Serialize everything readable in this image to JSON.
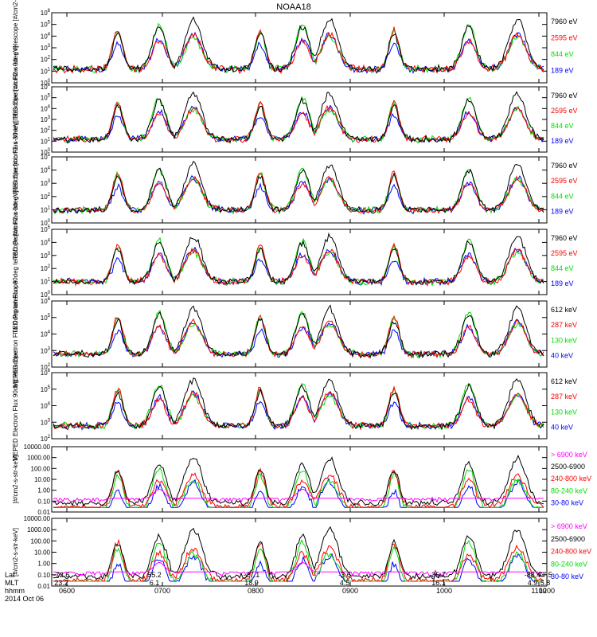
{
  "figure": {
    "title": "NOAA18",
    "date_label": "2014 Oct 06",
    "row_labels": [
      "Lat",
      "MLT",
      "hhmm"
    ],
    "time_axis": {
      "lat": [
        "-72.6",
        "55.2",
        "-27.1",
        "-3.6",
        "35.7",
        "-88.4",
        "77.5"
      ],
      "mlt": [
        "23.2",
        "6.1",
        "18.9",
        "4.5",
        "16.1",
        "4.9",
        "5.8"
      ],
      "hhmm": [
        "0600",
        "0700",
        "0800",
        "0900",
        "1000",
        "1100",
        "1200"
      ]
    }
  },
  "colors": {
    "black": "#000000",
    "red": "#ff0000",
    "green": "#00dd00",
    "blue": "#0000ff",
    "magenta": "#ff00ff"
  },
  "chart_data": [
    {
      "type": "line",
      "ylabel": "TED Electron Flux 0deg telescope [#/cm2-s-str-eV]",
      "yscale": "log",
      "ylim": [
        1,
        1000000
      ],
      "ytick_labels": [
        "10^0",
        "10^1",
        "10^2",
        "10^3",
        "10^4",
        "10^5",
        "10^6"
      ],
      "series": [
        {
          "name": "7960 eV",
          "color": "#000000"
        },
        {
          "name": "2595 eV",
          "color": "#ff0000"
        },
        {
          "name": "844 eV",
          "color": "#00dd00"
        },
        {
          "name": "189 eV",
          "color": "#0000ff"
        }
      ]
    },
    {
      "type": "line",
      "ylabel": "TED Electron Flux 30deg telescope [#/cm2-s-str-eV]",
      "yscale": "log",
      "ylim": [
        1,
        1000000
      ],
      "ytick_labels": [
        "10^0",
        "10^1",
        "10^2",
        "10^3",
        "10^4",
        "10^5",
        "10^6"
      ],
      "series": [
        {
          "name": "7960 eV",
          "color": "#000000"
        },
        {
          "name": "2595 eV",
          "color": "#ff0000"
        },
        {
          "name": "844 eV",
          "color": "#00dd00"
        },
        {
          "name": "189 eV",
          "color": "#0000ff"
        }
      ]
    },
    {
      "type": "line",
      "ylabel": "TED Proton Flux 0deg telescope [#/cm2-s-str-eV]",
      "yscale": "log",
      "ylim": [
        1,
        100000
      ],
      "ytick_labels": [
        "10^0",
        "10^1",
        "10^2",
        "10^3",
        "10^4",
        "10^5"
      ],
      "series": [
        {
          "name": "7960 eV",
          "color": "#000000"
        },
        {
          "name": "2595 eV",
          "color": "#ff0000"
        },
        {
          "name": "844 eV",
          "color": "#00dd00"
        },
        {
          "name": "189 eV",
          "color": "#0000ff"
        }
      ]
    },
    {
      "type": "line",
      "ylabel": "TED Proton Flux 30deg telescope [#/cm2-s-str-eV]",
      "yscale": "log",
      "ylim": [
        1,
        100000
      ],
      "ytick_labels": [
        "10^0",
        "10^1",
        "10^2",
        "10^3",
        "10^4",
        "10^5"
      ],
      "series": [
        {
          "name": "7960 eV",
          "color": "#000000"
        },
        {
          "name": "2595 eV",
          "color": "#ff0000"
        },
        {
          "name": "844 eV",
          "color": "#00dd00"
        },
        {
          "name": "189 eV",
          "color": "#0000ff"
        }
      ]
    },
    {
      "type": "line",
      "ylabel": "MEPED Electron Flux 0deg telescope",
      "yscale": "log",
      "ylim": [
        100,
        1000000
      ],
      "ytick_labels": [
        "10^2",
        "10^3",
        "10^4",
        "10^5",
        "10^6"
      ],
      "series": [
        {
          "name": "612 keV",
          "color": "#000000"
        },
        {
          "name": "287 keV",
          "color": "#ff0000"
        },
        {
          "name": "130 keV",
          "color": "#00dd00"
        },
        {
          "name": "40 keV",
          "color": "#0000ff"
        }
      ]
    },
    {
      "type": "line",
      "ylabel": "MEPED Electron Flux 90deg telescope",
      "yscale": "log",
      "ylim": [
        100,
        1000000
      ],
      "ytick_labels": [
        "10^2",
        "10^3",
        "10^4",
        "10^5",
        "10^6"
      ],
      "series": [
        {
          "name": "612 keV",
          "color": "#000000"
        },
        {
          "name": "287 keV",
          "color": "#ff0000"
        },
        {
          "name": "130 keV",
          "color": "#00dd00"
        },
        {
          "name": "40 keV",
          "color": "#0000ff"
        }
      ]
    },
    {
      "type": "line",
      "ylabel": "[#/cm2-s-str-keV]",
      "yscale": "log",
      "ylim": [
        0.01,
        10000
      ],
      "ytick_labels": [
        "0.01",
        "0.10",
        "1.00",
        "10.00",
        "100.00",
        "1000.00",
        "10000.00"
      ],
      "series": [
        {
          "name": "> 6900 keV",
          "color": "#ff00ff"
        },
        {
          "name": "2500-6900",
          "color": "#000000"
        },
        {
          "name": "240-800 keV",
          "color": "#ff0000"
        },
        {
          "name": "80-240 keV",
          "color": "#00dd00"
        },
        {
          "name": "30-80 keV",
          "color": "#0000ff"
        }
      ]
    },
    {
      "type": "line",
      "ylabel": "[#/cm2-s-str-keV]",
      "yscale": "log",
      "ylim": [
        0.01,
        10000
      ],
      "ytick_labels": [
        "0.01",
        "0.10",
        "1.00",
        "10.00",
        "100.00",
        "1000.00",
        "10000.00"
      ],
      "series": [
        {
          "name": "> 6900 keV",
          "color": "#ff00ff"
        },
        {
          "name": "2500-6900",
          "color": "#000000"
        },
        {
          "name": "240-800 keV",
          "color": "#ff0000"
        },
        {
          "name": "80-240 keV",
          "color": "#00dd00"
        },
        {
          "name": "30-80 keV",
          "color": "#0000ff"
        }
      ]
    }
  ]
}
